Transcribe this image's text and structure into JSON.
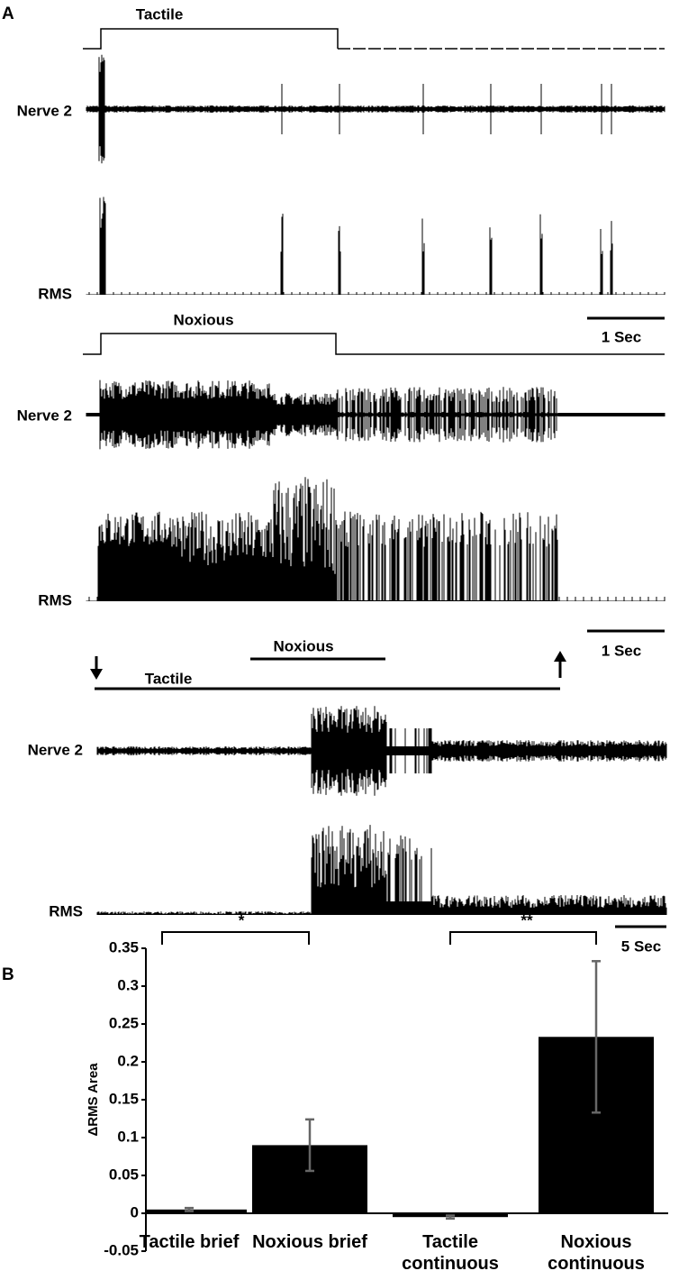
{
  "panel_a": {
    "label": "A",
    "recordings": [
      {
        "stimulus": "Tactile",
        "channels": [
          "Nerve 2",
          "RMS"
        ],
        "scale_bar": "1 Sec"
      },
      {
        "stimulus": "Noxious",
        "channels": [
          "Nerve 2",
          "RMS"
        ],
        "scale_bar": "1 Sec"
      },
      {
        "stimuli": [
          "Tactile",
          "Noxious"
        ],
        "channels": [
          "Nerve 2",
          "RMS"
        ],
        "scale_bar": "5 Sec"
      }
    ]
  },
  "chart_data": {
    "type": "bar",
    "label": "B",
    "ylabel": "ΔRMS Area",
    "categories": [
      "Tactile brief",
      "Noxious brief",
      "Tactile continuous",
      "Noxious continuous"
    ],
    "values": [
      0.005,
      0.09,
      -0.005,
      0.233
    ],
    "errors": [
      0.002,
      0.034,
      0.002,
      0.1
    ],
    "color": "#000000",
    "error_color": "#666666",
    "ylim": [
      -0.05,
      0.35
    ],
    "yticks": [
      -0.05,
      0,
      0.05,
      0.1,
      0.15,
      0.2,
      0.25,
      0.3,
      0.35
    ],
    "annotations": [
      "*",
      "**"
    ]
  }
}
